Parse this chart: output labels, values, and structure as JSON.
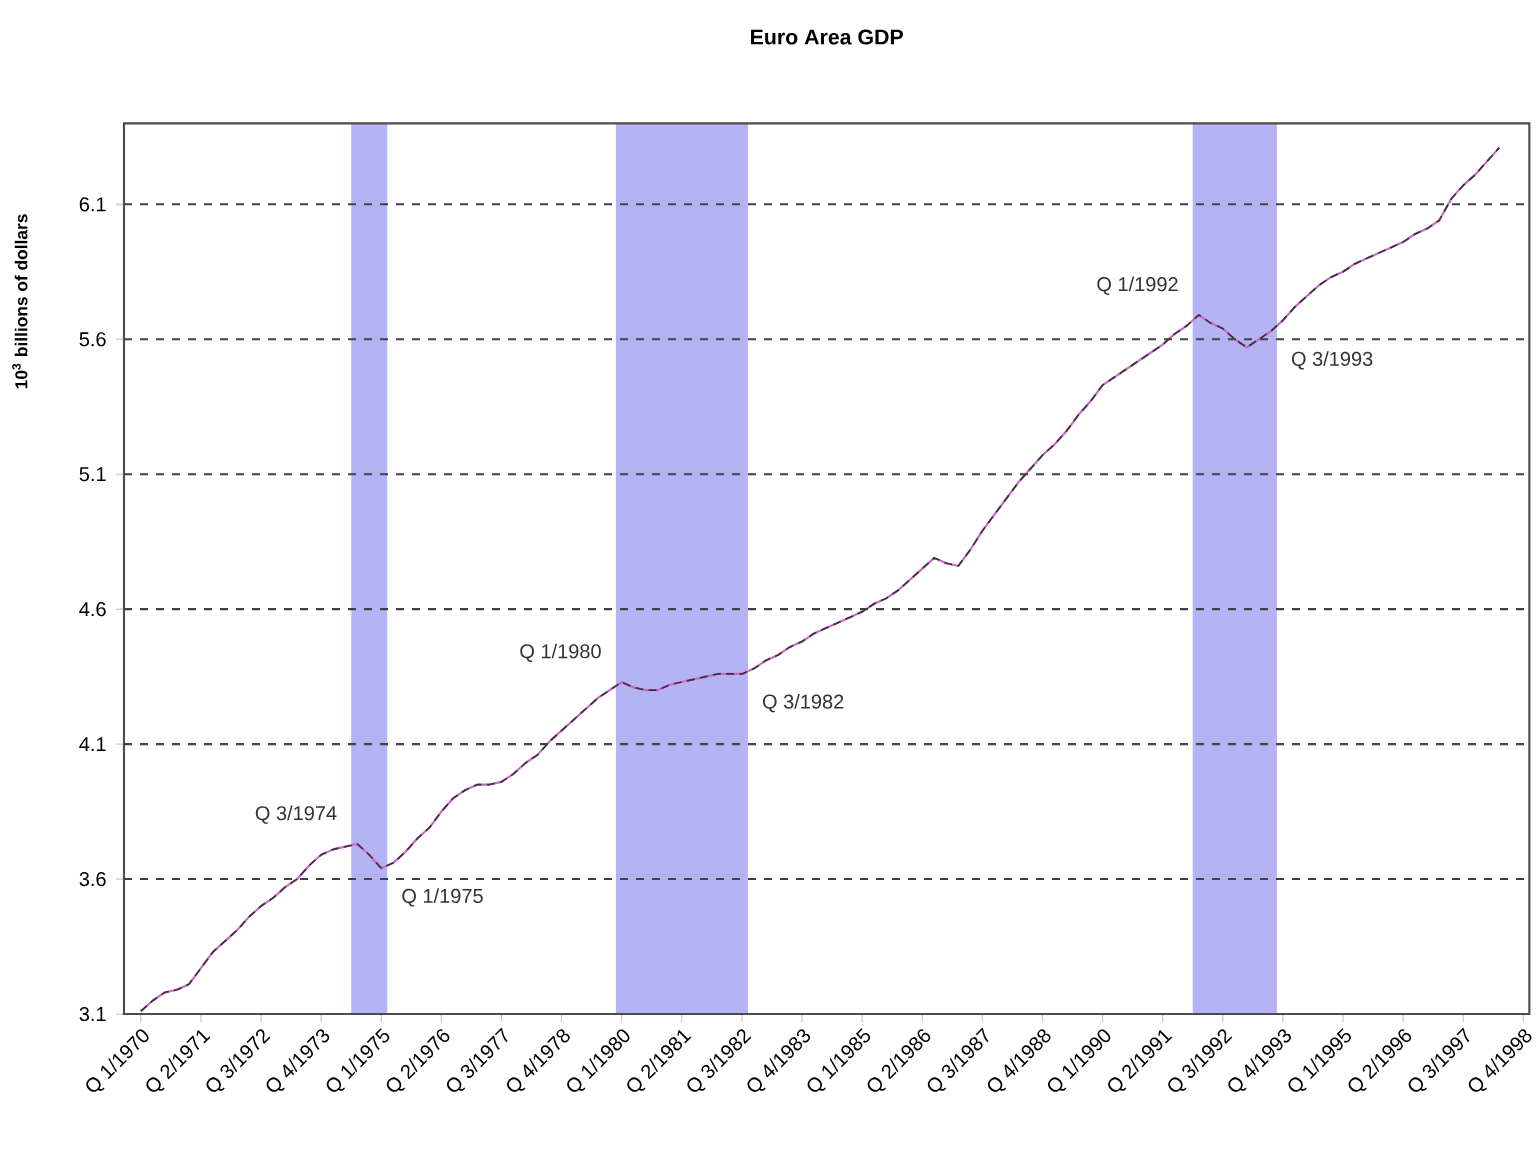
{
  "chart_data": {
    "type": "line",
    "title": "Euro Area GDP",
    "ylabel": "10$^{3}$ billions of dollars",
    "categories": [
      "Q 1/1970",
      null,
      null,
      null,
      null,
      "Q 2/1971",
      null,
      null,
      null,
      null,
      "Q 3/1972",
      null,
      null,
      null,
      null,
      "Q 4/1973",
      null,
      null,
      null,
      null,
      "Q 1/1975",
      null,
      null,
      null,
      null,
      "Q 2/1976",
      null,
      null,
      null,
      null,
      "Q 3/1977",
      null,
      null,
      null,
      null,
      "Q 4/1978",
      null,
      null,
      null,
      null,
      "Q 1/1980",
      null,
      null,
      null,
      null,
      "Q 2/1981",
      null,
      null,
      null,
      null,
      "Q 3/1982",
      null,
      null,
      null,
      null,
      "Q 4/1983",
      null,
      null,
      null,
      null,
      "Q 1/1985",
      null,
      null,
      null,
      null,
      "Q 2/1986",
      null,
      null,
      null,
      null,
      "Q 3/1987",
      null,
      null,
      null,
      null,
      "Q 4/1988",
      null,
      null,
      null,
      null,
      "Q 1/1990",
      null,
      null,
      null,
      null,
      "Q 2/1991",
      null,
      null,
      null,
      null,
      "Q 3/1992",
      null,
      null,
      null,
      null,
      "Q 4/1993",
      null,
      null,
      null,
      null,
      "Q 1/1995",
      null,
      null,
      null,
      null,
      "Q 2/1996",
      null,
      null,
      null,
      null,
      "Q 3/1997",
      null,
      null,
      null,
      null,
      "Q 4/1998"
    ],
    "series": [
      {
        "color": "#cc66cc",
        "line_style": "solid",
        "values": [
          3.11,
          3.15,
          3.18,
          3.19,
          3.21,
          3.27,
          3.33,
          3.37,
          3.41,
          3.46,
          3.5,
          3.53,
          3.57,
          3.6,
          3.65,
          3.69,
          3.71,
          3.72,
          3.73,
          3.69,
          3.64,
          3.66,
          3.7,
          3.75,
          3.79,
          3.85,
          3.9,
          3.93,
          3.95,
          3.95,
          3.96,
          3.99,
          4.03,
          4.06,
          4.11,
          4.15,
          4.19,
          4.23,
          4.27,
          4.3,
          4.33,
          4.31,
          4.3,
          4.3,
          4.32,
          4.33,
          4.34,
          4.35,
          4.36,
          4.36,
          4.36,
          4.38,
          4.41,
          4.43,
          4.46,
          4.48,
          4.51,
          4.53,
          4.55,
          4.57,
          4.59,
          4.62,
          4.64,
          4.67,
          4.71,
          4.75,
          4.79,
          4.77,
          4.76,
          4.82,
          4.89,
          4.95,
          5.01,
          5.07,
          5.12,
          5.17,
          5.21,
          5.26,
          5.32,
          5.37,
          5.43,
          5.46,
          5.49,
          5.52,
          5.55,
          5.58,
          5.62,
          5.65,
          5.69,
          5.66,
          5.64,
          5.6,
          5.57,
          5.6,
          5.63,
          5.67,
          5.72,
          5.76,
          5.8,
          5.83,
          5.85,
          5.88,
          5.9,
          5.92,
          5.94,
          5.96,
          5.99,
          6.01,
          6.04,
          6.12,
          6.17,
          6.21,
          6.26,
          6.31,
          null,
          null
        ]
      },
      {
        "color": "#333333",
        "line_style": "dashed",
        "values": [
          3.11,
          3.15,
          3.18,
          3.19,
          3.21,
          3.27,
          3.33,
          3.37,
          3.41,
          3.46,
          3.5,
          3.53,
          3.57,
          3.6,
          3.65,
          3.69,
          3.71,
          3.72,
          3.73,
          3.69,
          3.64,
          3.66,
          3.7,
          3.75,
          3.79,
          3.85,
          3.9,
          3.93,
          3.95,
          3.95,
          3.96,
          3.99,
          4.03,
          4.06,
          4.11,
          4.15,
          4.19,
          4.23,
          4.27,
          4.3,
          4.33,
          4.31,
          4.3,
          4.3,
          4.32,
          4.33,
          4.34,
          4.35,
          4.36,
          4.36,
          4.36,
          4.38,
          4.41,
          4.43,
          4.46,
          4.48,
          4.51,
          4.53,
          4.55,
          4.57,
          4.59,
          4.62,
          4.64,
          4.67,
          4.71,
          4.75,
          4.79,
          4.77,
          4.76,
          4.82,
          4.89,
          4.95,
          5.01,
          5.07,
          5.12,
          5.17,
          5.21,
          5.26,
          5.32,
          5.37,
          5.43,
          5.46,
          5.49,
          5.52,
          5.55,
          5.58,
          5.62,
          5.65,
          5.69,
          5.66,
          5.64,
          5.6,
          5.57,
          5.6,
          5.63,
          5.67,
          5.72,
          5.76,
          5.8,
          5.83,
          5.85,
          5.88,
          5.9,
          5.92,
          5.94,
          5.96,
          5.99,
          6.01,
          6.04,
          6.12,
          6.17,
          6.21,
          6.26,
          6.31,
          null,
          null
        ]
      }
    ],
    "ylim": [
      3.1,
      6.4
    ],
    "yticks": [
      3.1,
      3.6,
      4.1,
      4.6,
      5.1,
      5.6,
      6.1
    ],
    "grid": "y",
    "annotations": [
      "Q 3/1974",
      "Q 1/1975",
      "Q 1/1980",
      "Q 3/1982",
      "Q 1/1992",
      "Q 3/1993"
    ]
  }
}
